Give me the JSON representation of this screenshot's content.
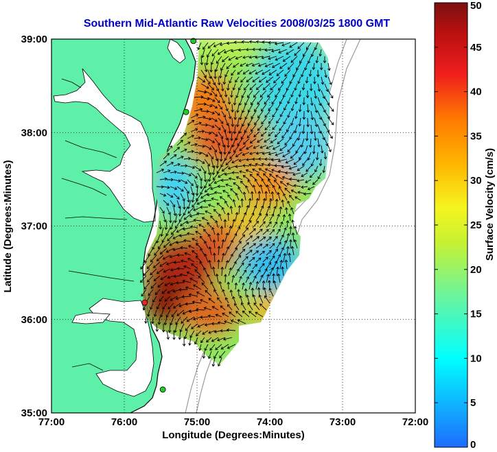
{
  "chart_data": {
    "type": "heatmap",
    "title": "Southern Mid-Atlantic Raw Velocities 2008/03/25 1800 GMT",
    "xlabel": "Longitude (Degrees:Minutes)",
    "ylabel": "Latitude (Degrees:Minutes)",
    "x_ticks": [
      "77:00",
      "76:00",
      "75:00",
      "74:00",
      "73:00",
      "72:00"
    ],
    "y_ticks": [
      "39:00",
      "38:00",
      "37:00",
      "36:00",
      "35:00"
    ],
    "xlim": [
      -77,
      -72
    ],
    "ylim": [
      35,
      39
    ],
    "grid": true,
    "colorbar": {
      "label": "Surface Velocity (cm/s)",
      "range": [
        0,
        50
      ],
      "ticks": [
        "50",
        "45",
        "40",
        "35",
        "30",
        "25",
        "20",
        "15",
        "10",
        "5",
        "0"
      ]
    },
    "velocity_hotspots": [
      {
        "lon": -75.05,
        "lat": 38.0,
        "value": 36
      },
      {
        "lon": -74.2,
        "lat": 37.4,
        "value": 32
      },
      {
        "lon": -75.25,
        "lat": 36.3,
        "value": 44
      },
      {
        "lon": -74.7,
        "lat": 36.9,
        "value": 27
      },
      {
        "lon": -74.25,
        "lat": 36.2,
        "value": 24
      }
    ],
    "velocity_lows": [
      {
        "lon": -73.6,
        "lat": 38.3,
        "value": 13
      },
      {
        "lon": -73.85,
        "lat": 36.5,
        "value": 10
      },
      {
        "lon": -75.3,
        "lat": 37.2,
        "value": 16
      }
    ],
    "stations": [
      {
        "lon": -75.05,
        "lat": 38.98,
        "color": "#22cc22"
      },
      {
        "lon": -75.15,
        "lat": 38.22,
        "color": "#22cc22"
      },
      {
        "lon": -75.72,
        "lat": 36.18,
        "color": "#ee2222"
      },
      {
        "lon": -75.47,
        "lat": 35.25,
        "color": "#22cc22"
      }
    ],
    "colors": {
      "land": "#5ef0a8",
      "title": "#0000cc"
    }
  }
}
